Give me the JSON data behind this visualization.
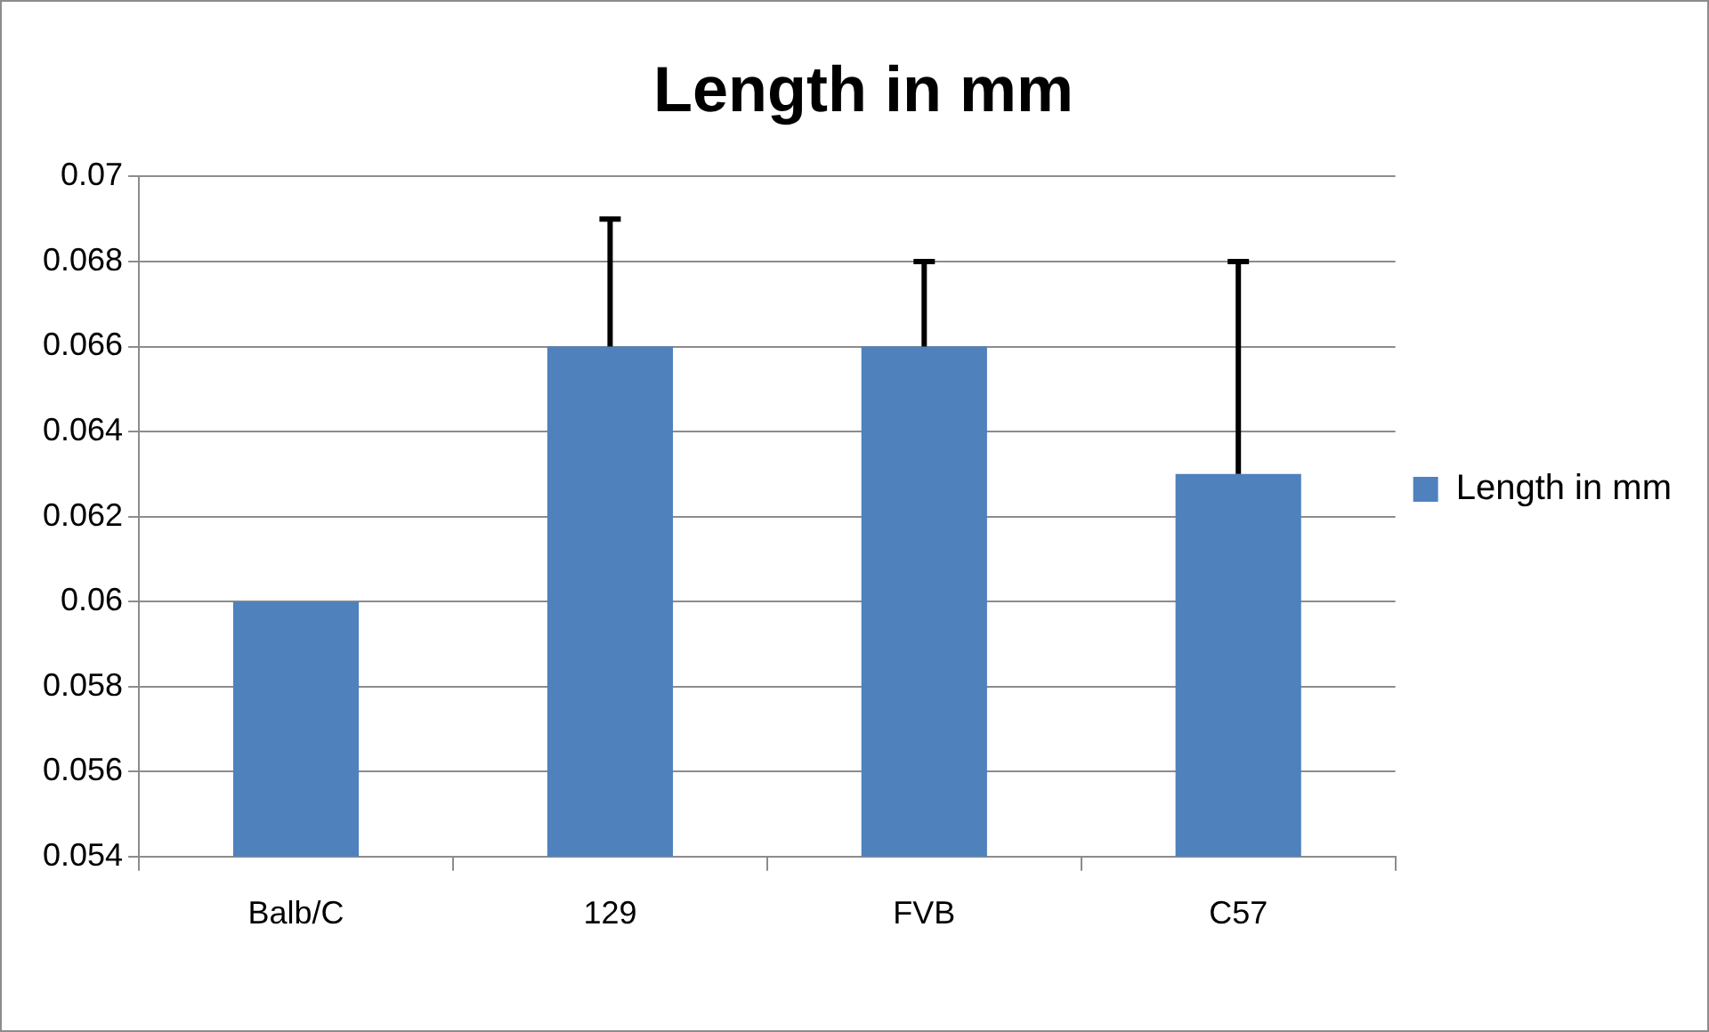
{
  "chart_data": {
    "type": "bar",
    "title": "Length in mm",
    "categories": [
      "Balb/C",
      "129",
      "FVB",
      "C57"
    ],
    "series": [
      {
        "name": "Length in mm",
        "color": "#4f81bd",
        "values": [
          0.06,
          0.066,
          0.066,
          0.063
        ],
        "errors": [
          null,
          [
            0.066,
            0.069
          ],
          [
            0.066,
            0.068
          ],
          [
            0.063,
            0.068
          ]
        ]
      }
    ],
    "ylim": [
      0.054,
      0.07
    ],
    "yticks": [
      0.054,
      0.056,
      0.058,
      0.06,
      0.062,
      0.064,
      0.066,
      0.068,
      0.07
    ],
    "grid": "y",
    "legend": "right"
  }
}
